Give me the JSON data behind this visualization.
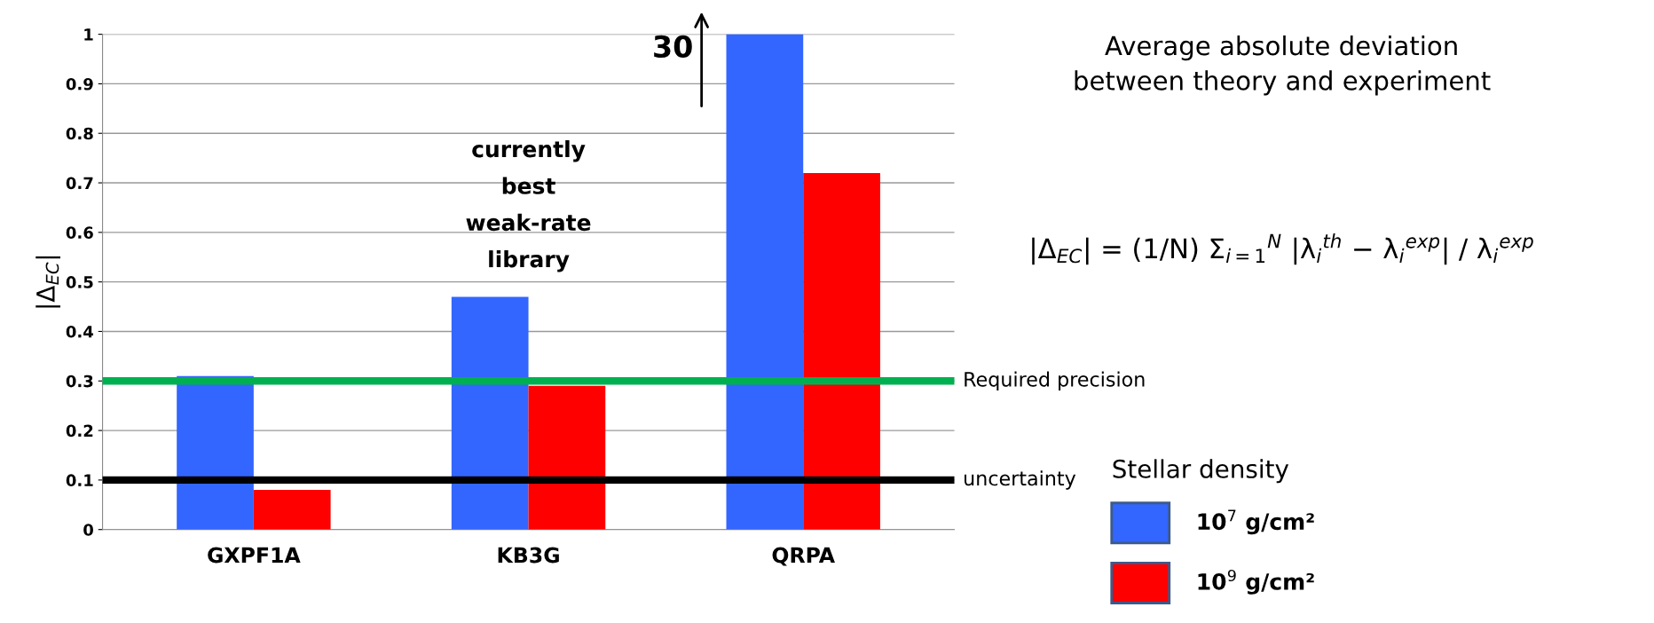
{
  "chart_data": {
    "type": "bar",
    "ylabel": "|Δ$_{EC}$|",
    "categories": [
      "GXPF1A",
      "KB3G",
      "QRPA"
    ],
    "series": [
      {
        "name": "10$^{7}$ g/cm²",
        "color": "#3366ff",
        "values": [
          0.31,
          0.47,
          1
        ]
      },
      {
        "name": "10$^{9}$ g/cm²",
        "color": "#ff0000",
        "values": [
          0.08,
          0.29,
          0.72
        ]
      }
    ],
    "ylim": [
      0,
      1
    ],
    "yticks": [
      0,
      0.1,
      0.2,
      0.3,
      0.4,
      0.5,
      0.6,
      0.7,
      0.8,
      0.9,
      1
    ],
    "grid": "y",
    "legend": "right",
    "legend_title": "Stellar density",
    "ref_lines": [
      {
        "axis": "y",
        "value": 0.3,
        "label": "Required precision",
        "color": "#00b050"
      },
      {
        "axis": "y",
        "value": 0.1,
        "label": "uncertainty",
        "color": "#000000"
      }
    ],
    "annotations": [
      "30",
      {
        "text": "currently\nbest\nweak-rate\nlibrary",
        "x": "KB3G",
        "y": 0.47
      },
      "Average absolute deviation\nbetween theory and experiment",
      "|Δ$_{EC}$| = (1/N) Σ$_{i=1}$$^{N}$ |λ$_{i}$$^{th}$ − λ$_{i}$$^{exp}$| / λ$_{i}$$^{exp}$"
    ]
  }
}
